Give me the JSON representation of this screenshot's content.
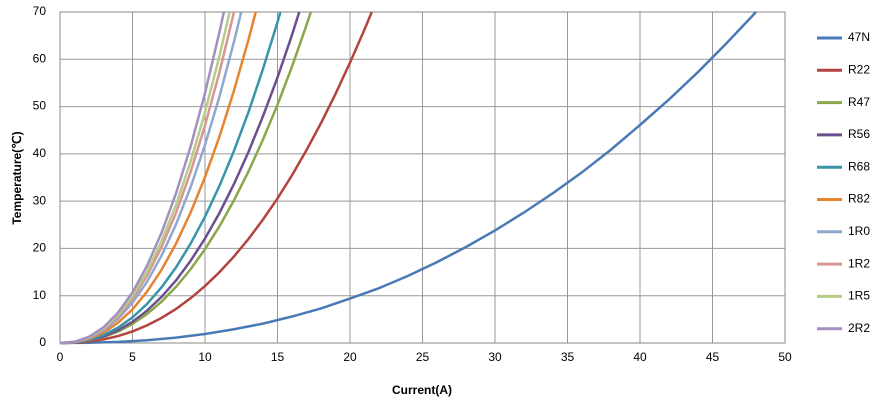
{
  "chart_data": {
    "type": "line",
    "xlabel": "Current(A)",
    "ylabel": "Temperature(℃)",
    "xlim": [
      0,
      50
    ],
    "xticks": [
      0,
      5,
      10,
      15,
      20,
      25,
      30,
      35,
      40,
      45,
      50
    ],
    "ylim": [
      0,
      70
    ],
    "yticks": [
      0,
      10,
      20,
      30,
      40,
      50,
      60,
      70
    ],
    "grid": true,
    "legend": "right",
    "series": [
      {
        "name": "47N",
        "color": "#4a7ab5",
        "x": [
          0,
          2,
          4,
          6,
          8,
          10,
          12,
          14,
          16,
          18,
          20,
          22,
          24,
          26,
          28,
          30,
          32,
          34,
          36,
          38,
          40,
          42,
          44,
          46,
          48
        ],
        "values": [
          0,
          0.05,
          0.23,
          0.59,
          1.14,
          1.9,
          2.9,
          4.1,
          5.6,
          7.3,
          9.4,
          11.6,
          14.2,
          17.1,
          20.3,
          23.8,
          27.6,
          31.7,
          36.1,
          40.9,
          46.1,
          51.5,
          57.3,
          63.5,
          70
        ]
      },
      {
        "name": "R22",
        "color": "#b4423f",
        "x": [
          0,
          1,
          2,
          3,
          4,
          5,
          6,
          7,
          8,
          9,
          10,
          11,
          12,
          13,
          14,
          15,
          16,
          17,
          18,
          19,
          20,
          21,
          21.5
        ],
        "values": [
          0,
          0.06,
          0.3,
          0.75,
          1.46,
          2.44,
          3.72,
          5.3,
          7.2,
          9.45,
          12.04,
          14.99,
          18.31,
          22.01,
          26.12,
          30.58,
          35.48,
          40.79,
          46.52,
          52.68,
          59.29,
          66.31,
          70
        ]
      },
      {
        "name": "R47",
        "color": "#8aa84a",
        "x": [
          0,
          1,
          2,
          3,
          4,
          5,
          6,
          7,
          8,
          9,
          10,
          11,
          12,
          13,
          14,
          15,
          16,
          17,
          17.3
        ],
        "values": [
          0,
          0.1,
          0.49,
          1.24,
          2.41,
          4.03,
          6.12,
          8.74,
          11.87,
          15.57,
          19.84,
          24.7,
          30.18,
          36.27,
          43.04,
          50.39,
          58.46,
          67.22,
          70
        ]
      },
      {
        "name": "R56",
        "color": "#6b4f8f",
        "x": [
          0,
          1,
          2,
          3,
          4,
          5,
          6,
          7,
          8,
          9,
          10,
          11,
          12,
          13,
          14,
          15,
          16,
          16.5
        ],
        "values": [
          0,
          0.11,
          0.55,
          1.39,
          2.69,
          4.49,
          6.83,
          9.74,
          13.23,
          17.35,
          22.1,
          27.52,
          33.63,
          40.42,
          47.97,
          56.15,
          65.15,
          70
        ]
      },
      {
        "name": "R68",
        "color": "#3796a9",
        "x": [
          0,
          1,
          2,
          3,
          4,
          5,
          6,
          7,
          8,
          9,
          10,
          11,
          12,
          13,
          14,
          15,
          15.2
        ],
        "values": [
          0,
          0.13,
          0.66,
          1.68,
          3.25,
          5.42,
          8.25,
          11.77,
          15.99,
          20.97,
          26.71,
          33.26,
          40.64,
          48.85,
          57.97,
          67.86,
          70
        ]
      },
      {
        "name": "R82",
        "color": "#e68431",
        "x": [
          0,
          1,
          2,
          3,
          4,
          5,
          6,
          7,
          8,
          9,
          10,
          11,
          12,
          13,
          13.5
        ],
        "values": [
          0,
          0.18,
          0.87,
          2.2,
          4.27,
          7.12,
          10.84,
          15.46,
          21.0,
          27.55,
          35.09,
          43.69,
          53.39,
          64.17,
          70
        ]
      },
      {
        "name": "1R0",
        "color": "#8fa8d0",
        "x": [
          0,
          1,
          2,
          3,
          4,
          5,
          6,
          7,
          8,
          9,
          10,
          11,
          12,
          12.5
        ],
        "values": [
          0,
          0.21,
          1.03,
          2.63,
          5.09,
          8.51,
          12.94,
          18.46,
          25.07,
          32.89,
          41.9,
          52.16,
          63.74,
          70
        ]
      },
      {
        "name": "1R2",
        "color": "#d89594",
        "x": [
          0,
          1,
          2,
          3,
          4,
          5,
          6,
          7,
          8,
          9,
          10,
          11,
          12
        ],
        "values": [
          0,
          0.23,
          1.14,
          2.88,
          5.59,
          9.34,
          14.21,
          20.27,
          27.53,
          36.11,
          46.01,
          57.28,
          70
        ]
      },
      {
        "name": "1R5",
        "color": "#b5cd85",
        "x": [
          0,
          1,
          2,
          3,
          4,
          5,
          6,
          7,
          8,
          9,
          10,
          11,
          11.7
        ],
        "values": [
          0,
          0.24,
          1.2,
          3.06,
          5.93,
          9.9,
          15.06,
          21.49,
          29.19,
          38.29,
          48.78,
          60.73,
          70
        ]
      },
      {
        "name": "2R2",
        "color": "#a48fc0",
        "x": [
          0,
          1,
          2,
          3,
          4,
          5,
          6,
          7,
          8,
          9,
          10,
          11,
          11.3
        ],
        "values": [
          0,
          0.26,
          1.3,
          3.31,
          6.42,
          10.72,
          16.31,
          23.28,
          31.62,
          41.47,
          52.83,
          65.78,
          70
        ]
      }
    ]
  }
}
